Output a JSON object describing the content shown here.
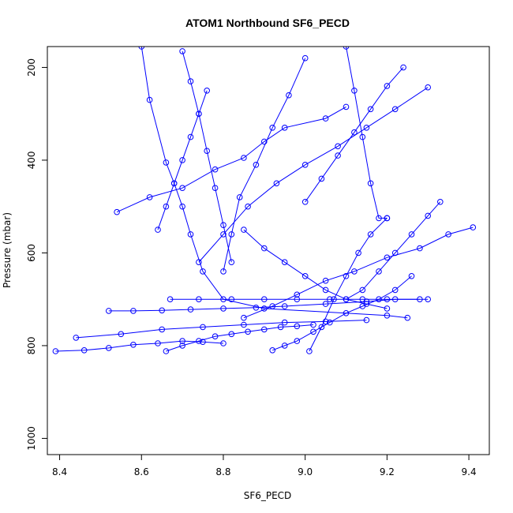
{
  "chart_data": {
    "type": "scatter",
    "title": "ATOM1 Northbound SF6_PECD",
    "xlabel": "SF6_PECD",
    "ylabel": "Pressure (mbar)",
    "xlim": [
      8.37,
      9.45
    ],
    "ylim": [
      1035,
      155
    ],
    "y_reversed": true,
    "xticks": [
      8.4,
      8.6,
      8.8,
      9.0,
      9.2,
      9.4
    ],
    "xtick_labels": [
      "8.4",
      "8.6",
      "8.8",
      "9.0",
      "9.2",
      "9.4"
    ],
    "yticks": [
      200,
      400,
      600,
      800,
      1000
    ],
    "ytick_labels": [
      "200",
      "400",
      "600",
      "800",
      "1000"
    ],
    "series_color": "#0000ff",
    "marker": "open-circle",
    "series": [
      {
        "x": [
          8.6,
          8.62,
          8.66,
          8.68,
          8.7,
          8.72,
          8.75,
          8.8,
          8.9,
          9.2,
          9.25
        ],
        "y": [
          155,
          270,
          405,
          450,
          500,
          560,
          640,
          700,
          720,
          735,
          740
        ]
      },
      {
        "x": [
          8.54,
          8.62,
          8.7,
          8.78,
          8.85,
          8.9,
          8.95,
          9.05,
          9.1
        ],
        "y": [
          512,
          480,
          460,
          420,
          395,
          360,
          330,
          310,
          285
        ]
      },
      {
        "x": [
          8.39,
          8.46,
          8.52,
          8.58,
          8.64,
          8.7,
          8.75,
          8.8
        ],
        "y": [
          812,
          810,
          805,
          798,
          795,
          790,
          792,
          795
        ]
      },
      {
        "x": [
          8.44,
          8.55,
          8.65,
          8.75,
          8.85,
          8.95,
          9.05,
          9.15
        ],
        "y": [
          783,
          775,
          765,
          760,
          755,
          750,
          748,
          745
        ]
      },
      {
        "x": [
          8.52,
          8.58,
          8.65,
          8.72,
          8.8,
          8.88,
          8.95,
          9.05,
          9.15,
          9.22,
          9.3
        ],
        "y": [
          725,
          725,
          724,
          722,
          720,
          718,
          715,
          710,
          705,
          700,
          700
        ]
      },
      {
        "x": [
          8.67,
          8.74,
          8.82,
          8.9,
          8.98,
          9.06,
          9.14,
          9.2,
          9.28
        ],
        "y": [
          700,
          700,
          700,
          700,
          700,
          700,
          700,
          700,
          700
        ]
      },
      {
        "x": [
          9.41,
          9.35,
          9.28,
          9.2,
          9.12,
          9.05,
          8.98,
          8.92,
          8.85
        ],
        "y": [
          545,
          560,
          590,
          610,
          640,
          660,
          690,
          715,
          740
        ]
      },
      {
        "x": [
          9.3,
          9.22,
          9.15,
          9.08,
          9.0,
          8.93,
          8.86,
          8.8,
          8.74
        ],
        "y": [
          243,
          290,
          330,
          370,
          410,
          450,
          500,
          560,
          620
        ]
      },
      {
        "x": [
          9.1,
          9.12,
          9.14,
          9.16,
          9.18,
          9.2
        ],
        "y": [
          155,
          250,
          350,
          450,
          525,
          525
        ]
      },
      {
        "x": [
          8.7,
          8.72,
          8.74,
          8.76,
          8.78,
          8.8,
          8.82
        ],
        "y": [
          165,
          230,
          300,
          380,
          460,
          540,
          620
        ]
      },
      {
        "x": [
          9.0,
          8.96,
          8.92,
          8.88,
          8.84,
          8.82,
          8.8
        ],
        "y": [
          180,
          260,
          330,
          410,
          480,
          560,
          640
        ]
      },
      {
        "x": [
          8.66,
          8.7,
          8.74,
          8.78,
          8.82,
          8.86,
          8.9,
          8.94,
          8.98,
          9.02
        ],
        "y": [
          812,
          800,
          790,
          780,
          775,
          770,
          765,
          760,
          758,
          755
        ]
      },
      {
        "x": [
          8.92,
          8.95,
          8.98,
          9.02,
          9.06,
          9.1,
          9.14,
          9.18,
          9.22,
          9.26
        ],
        "y": [
          810,
          800,
          790,
          770,
          750,
          730,
          715,
          700,
          680,
          650
        ]
      },
      {
        "x": [
          9.01,
          9.04,
          9.07,
          9.1,
          9.13,
          9.16,
          9.2
        ],
        "y": [
          812,
          760,
          700,
          650,
          600,
          560,
          525
        ]
      },
      {
        "x": [
          8.64,
          8.66,
          8.68,
          8.7,
          8.72,
          8.74,
          8.76
        ],
        "y": [
          550,
          500,
          450,
          400,
          350,
          300,
          250
        ]
      },
      {
        "x": [
          9.33,
          9.3,
          9.26,
          9.22,
          9.18,
          9.14,
          9.1
        ],
        "y": [
          490,
          520,
          560,
          600,
          640,
          680,
          700
        ]
      },
      {
        "x": [
          8.85,
          8.9,
          8.95,
          9.0,
          9.05,
          9.1,
          9.15,
          9.2
        ],
        "y": [
          550,
          590,
          620,
          650,
          680,
          700,
          710,
          720
        ]
      },
      {
        "x": [
          9.24,
          9.2,
          9.16,
          9.12,
          9.08,
          9.04,
          9.0
        ],
        "y": [
          200,
          240,
          290,
          340,
          390,
          440,
          490
        ]
      }
    ]
  }
}
